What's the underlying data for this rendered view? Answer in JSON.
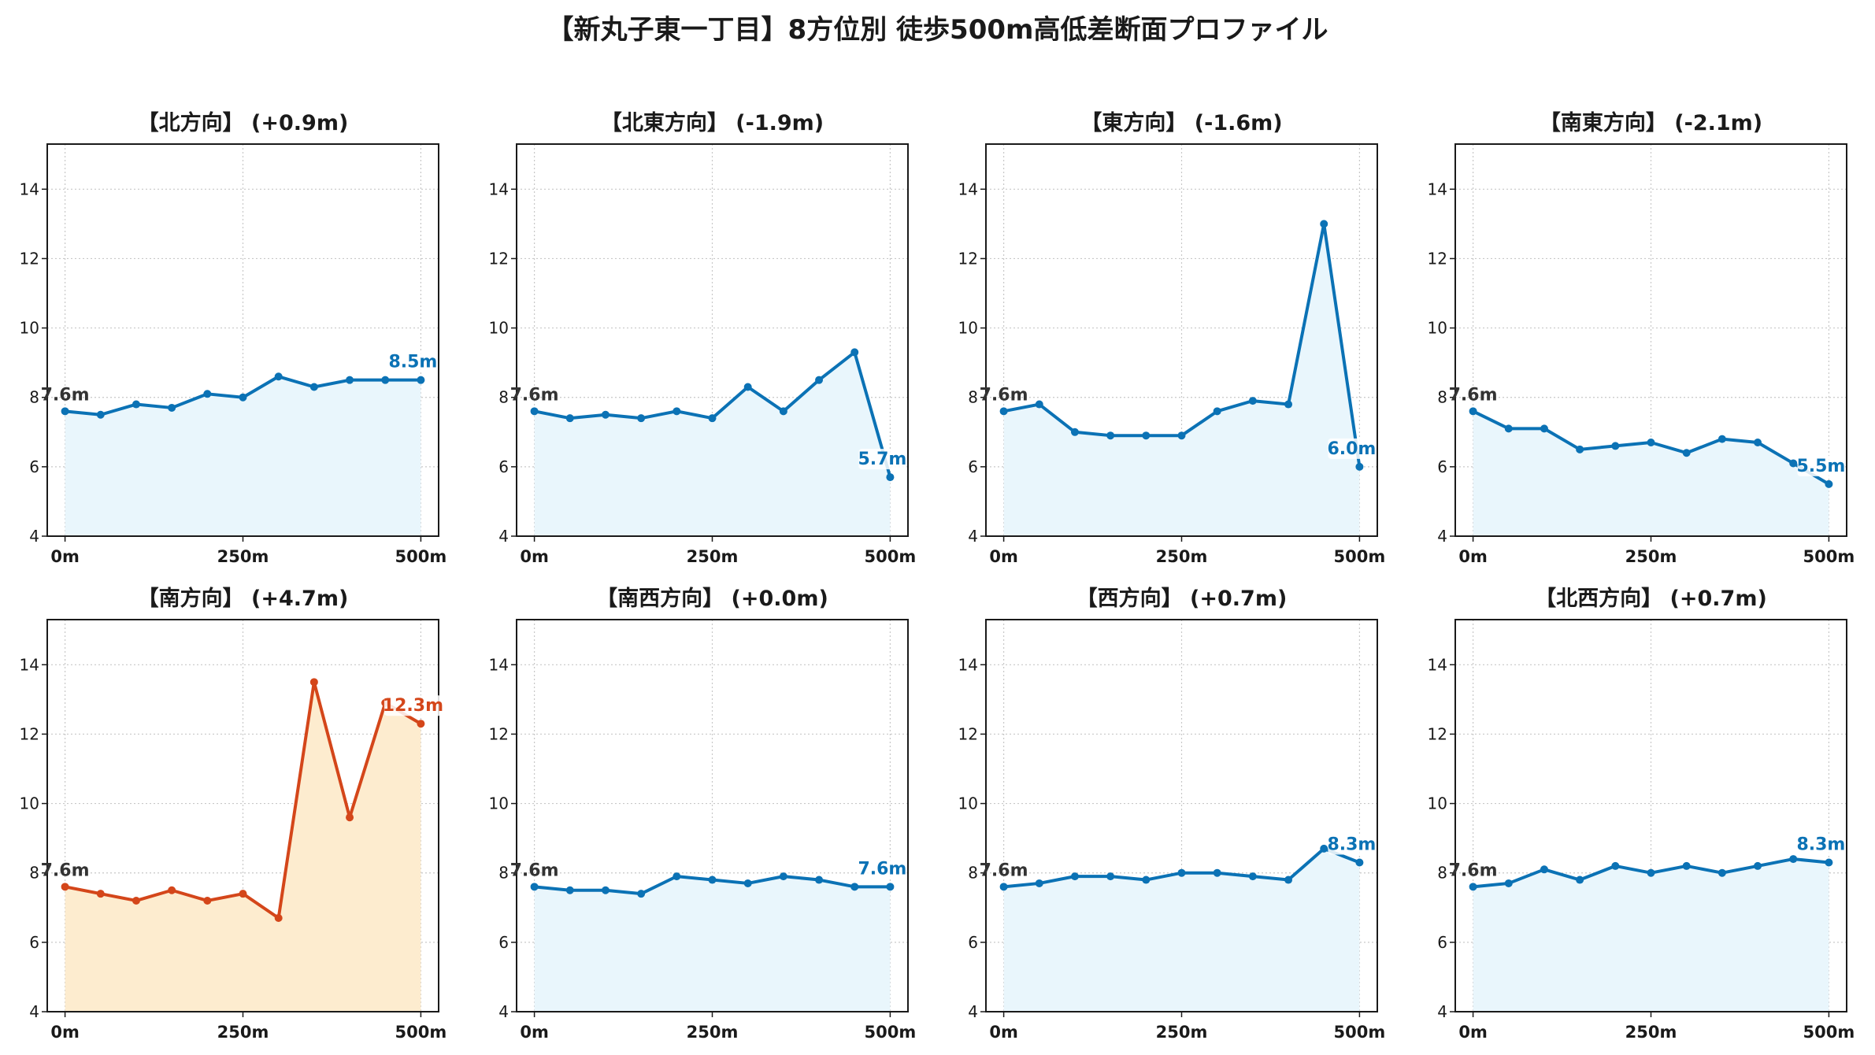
{
  "title": "【新丸子東一丁目】8方位別 徒歩500m高低差断面プロファイル",
  "colors": {
    "line_default": "#0b72b5",
    "fill_default": "#e9f6fc",
    "line_highlight": "#d4461a",
    "fill_highlight": "#fdeccf",
    "grid": "#c8c8c8",
    "start_label": "#333333"
  },
  "chart_data": [
    {
      "type": "area",
      "title": "【北方向】 (+0.9m)",
      "x": [
        0,
        50,
        100,
        150,
        200,
        250,
        300,
        350,
        400,
        450,
        500
      ],
      "values": [
        7.6,
        7.5,
        7.8,
        7.7,
        8.1,
        8.0,
        8.6,
        8.3,
        8.5,
        8.5,
        8.5
      ],
      "start_label": "7.6m",
      "end_label": "8.5m",
      "highlight": false,
      "xticks": [
        "0m",
        "250m",
        "500m"
      ],
      "yticks": [
        "4",
        "6",
        "8",
        "10",
        "12",
        "14"
      ],
      "ylim": [
        4,
        15.3
      ],
      "xlim": [
        -25,
        525
      ],
      "grid": true
    },
    {
      "type": "area",
      "title": "【北東方向】 (-1.9m)",
      "x": [
        0,
        50,
        100,
        150,
        200,
        250,
        300,
        350,
        400,
        450,
        500
      ],
      "values": [
        7.6,
        7.4,
        7.5,
        7.4,
        7.6,
        7.4,
        8.3,
        7.6,
        8.5,
        9.3,
        5.7
      ],
      "start_label": "7.6m",
      "end_label": "5.7m",
      "highlight": false,
      "xticks": [
        "0m",
        "250m",
        "500m"
      ],
      "yticks": [
        "4",
        "6",
        "8",
        "10",
        "12",
        "14"
      ],
      "ylim": [
        4,
        15.3
      ],
      "xlim": [
        -25,
        525
      ],
      "grid": true
    },
    {
      "type": "area",
      "title": "【東方向】 (-1.6m)",
      "x": [
        0,
        50,
        100,
        150,
        200,
        250,
        300,
        350,
        400,
        450,
        500
      ],
      "values": [
        7.6,
        7.8,
        7.0,
        6.9,
        6.9,
        6.9,
        7.6,
        7.9,
        7.8,
        13.0,
        6.0
      ],
      "start_label": "7.6m",
      "end_label": "6.0m",
      "highlight": false,
      "xticks": [
        "0m",
        "250m",
        "500m"
      ],
      "yticks": [
        "4",
        "6",
        "8",
        "10",
        "12",
        "14"
      ],
      "ylim": [
        4,
        15.3
      ],
      "xlim": [
        -25,
        525
      ],
      "grid": true
    },
    {
      "type": "area",
      "title": "【南東方向】 (-2.1m)",
      "x": [
        0,
        50,
        100,
        150,
        200,
        250,
        300,
        350,
        400,
        450,
        500
      ],
      "values": [
        7.6,
        7.1,
        7.1,
        6.5,
        6.6,
        6.7,
        6.4,
        6.8,
        6.7,
        6.1,
        5.5
      ],
      "start_label": "7.6m",
      "end_label": "5.5m",
      "highlight": false,
      "xticks": [
        "0m",
        "250m",
        "500m"
      ],
      "yticks": [
        "4",
        "6",
        "8",
        "10",
        "12",
        "14"
      ],
      "ylim": [
        4,
        15.3
      ],
      "xlim": [
        -25,
        525
      ],
      "grid": true
    },
    {
      "type": "area",
      "title": "【南方向】 (+4.7m)",
      "x": [
        0,
        50,
        100,
        150,
        200,
        250,
        300,
        350,
        400,
        450,
        500
      ],
      "values": [
        7.6,
        7.4,
        7.2,
        7.5,
        7.2,
        7.4,
        6.7,
        13.5,
        9.6,
        12.9,
        12.3
      ],
      "start_label": "7.6m",
      "end_label": "12.3m",
      "highlight": true,
      "xticks": [
        "0m",
        "250m",
        "500m"
      ],
      "yticks": [
        "4",
        "6",
        "8",
        "10",
        "12",
        "14"
      ],
      "ylim": [
        4,
        15.3
      ],
      "xlim": [
        -25,
        525
      ],
      "grid": true
    },
    {
      "type": "area",
      "title": "【南西方向】 (+0.0m)",
      "x": [
        0,
        50,
        100,
        150,
        200,
        250,
        300,
        350,
        400,
        450,
        500
      ],
      "values": [
        7.6,
        7.5,
        7.5,
        7.4,
        7.9,
        7.8,
        7.7,
        7.9,
        7.8,
        7.6,
        7.6
      ],
      "start_label": "7.6m",
      "end_label": "7.6m",
      "highlight": false,
      "xticks": [
        "0m",
        "250m",
        "500m"
      ],
      "yticks": [
        "4",
        "6",
        "8",
        "10",
        "12",
        "14"
      ],
      "ylim": [
        4,
        15.3
      ],
      "xlim": [
        -25,
        525
      ],
      "grid": true
    },
    {
      "type": "area",
      "title": "【西方向】 (+0.7m)",
      "x": [
        0,
        50,
        100,
        150,
        200,
        250,
        300,
        350,
        400,
        450,
        500
      ],
      "values": [
        7.6,
        7.7,
        7.9,
        7.9,
        7.8,
        8.0,
        8.0,
        7.9,
        7.8,
        8.7,
        8.3
      ],
      "start_label": "7.6m",
      "end_label": "8.3m",
      "highlight": false,
      "xticks": [
        "0m",
        "250m",
        "500m"
      ],
      "yticks": [
        "4",
        "6",
        "8",
        "10",
        "12",
        "14"
      ],
      "ylim": [
        4,
        15.3
      ],
      "xlim": [
        -25,
        525
      ],
      "grid": true
    },
    {
      "type": "area",
      "title": "【北西方向】 (+0.7m)",
      "x": [
        0,
        50,
        100,
        150,
        200,
        250,
        300,
        350,
        400,
        450,
        500
      ],
      "values": [
        7.6,
        7.7,
        8.1,
        7.8,
        8.2,
        8.0,
        8.2,
        8.0,
        8.2,
        8.4,
        8.3
      ],
      "start_label": "7.6m",
      "end_label": "8.3m",
      "highlight": false,
      "xticks": [
        "0m",
        "250m",
        "500m"
      ],
      "yticks": [
        "4",
        "6",
        "8",
        "10",
        "12",
        "14"
      ],
      "ylim": [
        4,
        15.3
      ],
      "xlim": [
        -25,
        525
      ],
      "grid": true
    }
  ]
}
